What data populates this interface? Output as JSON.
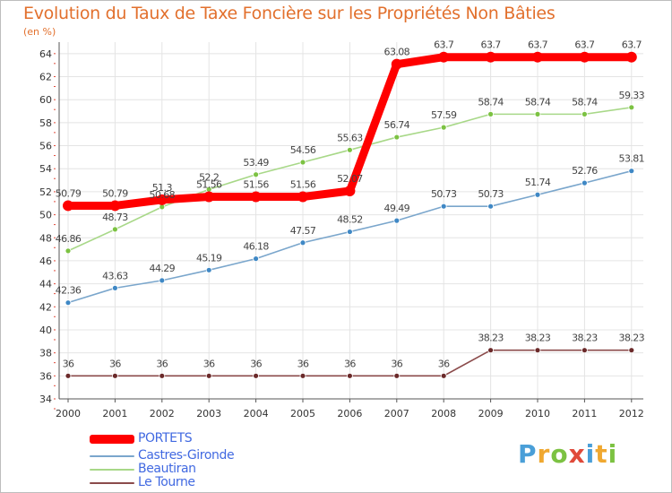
{
  "chart_data": {
    "type": "line",
    "title": "Evolution du Taux de Taxe Foncière sur les Propriétés Non Bâties",
    "unit_label": "(en %)",
    "xlabel": "",
    "ylabel": "(en %)",
    "ylim": [
      34,
      65
    ],
    "categories": [
      "2000",
      "2001",
      "2002",
      "2003",
      "2004",
      "2005",
      "2006",
      "2007",
      "2008",
      "2009",
      "2010",
      "2011",
      "2012"
    ],
    "y_ticks": [
      "34",
      "36",
      "38",
      "40",
      "42",
      "44",
      "46",
      "48",
      "50",
      "52",
      "54",
      "56",
      "58",
      "60",
      "62",
      "64"
    ],
    "series": [
      {
        "name": "PORTETS",
        "color": "#ff0000",
        "marker_color": "#ff0000",
        "values": [
          50.79,
          50.79,
          51.3,
          51.56,
          51.56,
          51.56,
          52.07,
          63.08,
          63.7,
          63.7,
          63.7,
          63.7,
          63.7
        ],
        "labels": [
          "50.79",
          "50.79",
          "51.3",
          "51.56",
          "51.56",
          "51.56",
          "52.07",
          "63.08",
          "63.7",
          "63.7",
          "63.7",
          "63.7",
          "63.7"
        ]
      },
      {
        "name": "Castres-Gironde",
        "color": "#7aa6cc",
        "marker_color": "#3f88c5",
        "values": [
          42.36,
          43.63,
          44.29,
          45.19,
          46.18,
          47.57,
          48.52,
          49.49,
          50.73,
          50.73,
          51.74,
          52.76,
          53.81
        ],
        "labels": [
          "42.36",
          "43.63",
          "44.29",
          "45.19",
          "46.18",
          "47.57",
          "48.52",
          "49.49",
          "50.73",
          "50.73",
          "51.74",
          "52.76",
          "53.81"
        ]
      },
      {
        "name": "Beautiran",
        "color": "#a8d888",
        "marker_color": "#7cc242",
        "values": [
          46.86,
          48.73,
          50.68,
          52.2,
          53.49,
          54.56,
          55.63,
          56.74,
          57.59,
          58.74,
          58.74,
          58.74,
          59.33
        ],
        "labels": [
          "46.86",
          "48.73",
          "50.68",
          "52.2",
          "53.49",
          "54.56",
          "55.63",
          "56.74",
          "57.59",
          "58.74",
          "58.74",
          "58.74",
          "59.33"
        ]
      },
      {
        "name": "Le Tourne",
        "color": "#8b4b4b",
        "marker_color": "#6b2a2a",
        "values": [
          36,
          36,
          36,
          36,
          36,
          36,
          36,
          36,
          36,
          38.23,
          38.23,
          38.23,
          38.23
        ],
        "labels": [
          "36",
          "36",
          "36",
          "36",
          "36",
          "36",
          "36",
          "36",
          "36",
          "38.23",
          "38.23",
          "38.23",
          "38.23"
        ]
      }
    ],
    "legend_position": "bottom-left"
  },
  "brand": {
    "logo_letters": [
      "P",
      "r",
      "o",
      "x",
      "i",
      "t",
      "i"
    ],
    "logo_colors": [
      "#4a9fd8",
      "#f0a830",
      "#7cc242",
      "#e04a3a",
      "#4a9fd8",
      "#f0a830",
      "#7cc242"
    ]
  }
}
